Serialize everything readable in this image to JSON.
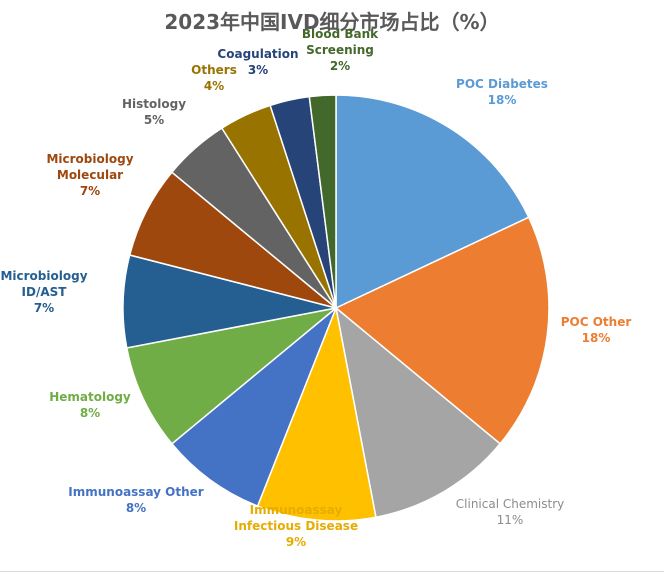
{
  "chart_data": {
    "type": "pie",
    "title": "2023年中国IVD细分市场占比（%）",
    "start": "12 o'clock",
    "direction": "clockwise",
    "slices": [
      {
        "name": "POC Diabetes",
        "lines": [
          "POC Diabetes"
        ],
        "value": 18,
        "label": "18%",
        "color": "#5B9BD5",
        "label_color": "#5B9BD5",
        "bold": true
      },
      {
        "name": "POC Other",
        "lines": [
          "POC Other"
        ],
        "value": 18,
        "label": "18%",
        "color": "#ED7D31",
        "label_color": "#ED7D31",
        "bold": true
      },
      {
        "name": "Clinical Chemistry",
        "lines": [
          "Clinical Chemistry"
        ],
        "value": 11,
        "label": "11%",
        "color": "#A5A5A5",
        "label_color": "#8C8C8C",
        "bold": false
      },
      {
        "name": "Immunoassay Infectious Disease",
        "lines": [
          "Immunoassay",
          "Infectious Disease"
        ],
        "value": 9,
        "label": "9%",
        "color": "#FFC000",
        "label_color": "#E6AC00",
        "bold": true
      },
      {
        "name": "Immunoassay Other",
        "lines": [
          "Immunoassay Other"
        ],
        "value": 8,
        "label": "8%",
        "color": "#4472C4",
        "label_color": "#4472C4",
        "bold": true
      },
      {
        "name": "Hematology",
        "lines": [
          "Hematology"
        ],
        "value": 8,
        "label": "8%",
        "color": "#70AD47",
        "label_color": "#70AD47",
        "bold": true
      },
      {
        "name": "Microbiology ID/AST",
        "lines": [
          "Microbiology",
          "ID/AST"
        ],
        "value": 7,
        "label": "7%",
        "color": "#255E91",
        "label_color": "#255E91",
        "bold": true
      },
      {
        "name": "Microbiology Molecular",
        "lines": [
          "Microbiology",
          "Molecular"
        ],
        "value": 7,
        "label": "7%",
        "color": "#9E480E",
        "label_color": "#9E480E",
        "bold": true
      },
      {
        "name": "Histology",
        "lines": [
          "Histology"
        ],
        "value": 5,
        "label": "5%",
        "color": "#636363",
        "label_color": "#636363",
        "bold": true
      },
      {
        "name": "Others",
        "lines": [
          "Others"
        ],
        "value": 4,
        "label": "4%",
        "color": "#997300",
        "label_color": "#997300",
        "bold": true
      },
      {
        "name": "Coagulation",
        "lines": [
          "Coagulation"
        ],
        "value": 3,
        "label": "3%",
        "color": "#264478",
        "label_color": "#264478",
        "bold": true
      },
      {
        "name": "Blood Bank Screening",
        "lines": [
          "Blood Bank",
          "Screening"
        ],
        "value": 2,
        "label": "2%",
        "color": "#43682B",
        "label_color": "#43682B",
        "bold": true
      }
    ]
  }
}
